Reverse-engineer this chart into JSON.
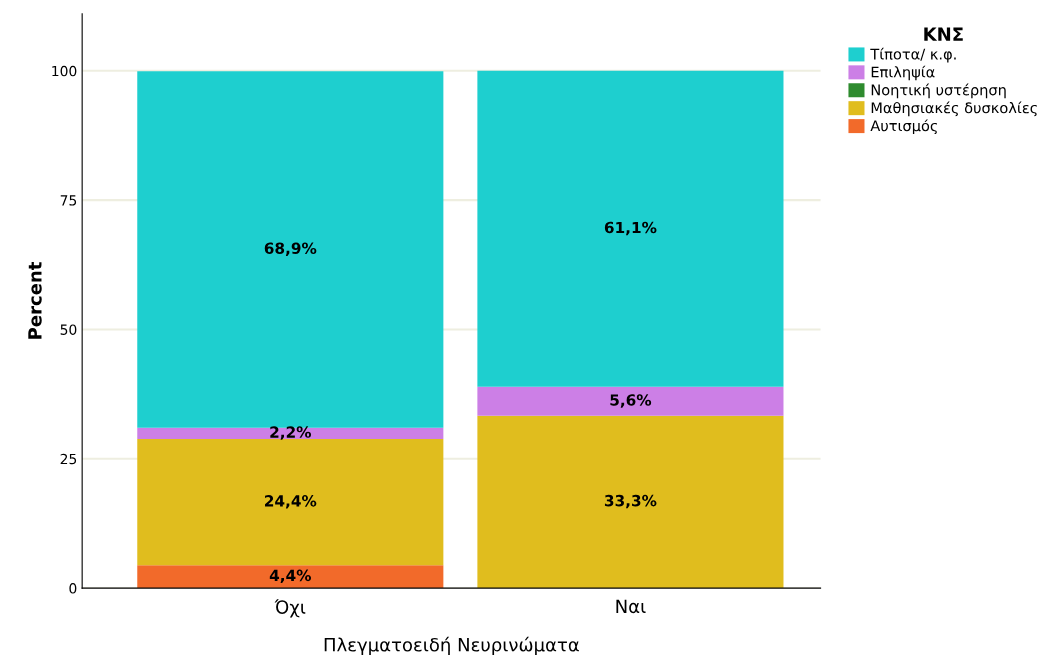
{
  "chart_data": {
    "type": "bar",
    "stacked": true,
    "xlabel": "Πλεγματοειδή Νευρινώματα",
    "ylabel": "Percent",
    "legend_title": "ΚΝΣ",
    "categories": [
      "Όχι",
      "Ναι"
    ],
    "series": [
      {
        "name": "Αυτισμός",
        "color": "#f26a2a",
        "values": [
          4.4,
          0
        ],
        "value_labels": [
          "4,4%",
          null
        ]
      },
      {
        "name": "Μαθησιακές δυσκολίες",
        "color": "#e0bd1e",
        "values": [
          24.4,
          33.3
        ],
        "value_labels": [
          "24,4%",
          "33,3%"
        ]
      },
      {
        "name": "Νοητική υστέρηση",
        "color": "#2e8b2e",
        "values": [
          0,
          0
        ],
        "value_labels": [
          null,
          null
        ]
      },
      {
        "name": "Επιληψία",
        "color": "#cc7fe6",
        "values": [
          2.2,
          5.6
        ],
        "value_labels": [
          "2,2%",
          "5,6%"
        ]
      },
      {
        "name": "Τίποτα/ κ.φ.",
        "color": "#1ecfcf",
        "values": [
          68.9,
          61.1
        ],
        "value_labels": [
          "68,9%",
          "61,1%"
        ]
      }
    ],
    "ylim": [
      0,
      111
    ],
    "yticks": [
      0,
      25,
      50,
      75,
      100
    ],
    "grid": "y",
    "legend": "top right"
  }
}
